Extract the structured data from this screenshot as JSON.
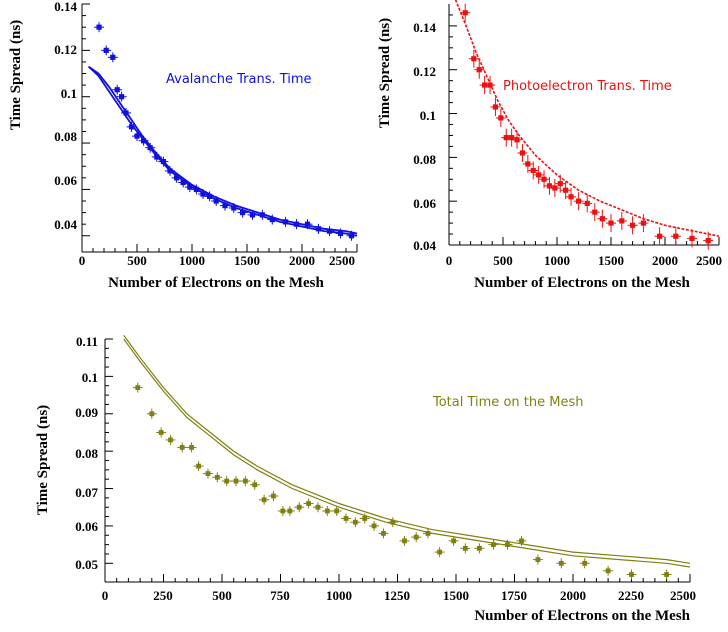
{
  "chart_data": [
    {
      "type": "scatter",
      "title": "",
      "annotation": "Avalanche Trans. Time",
      "xlabel": "Number of Electrons on the Mesh",
      "ylabel": "Time Spread (ns)",
      "xlim": [
        0,
        2500
      ],
      "ylim": [
        0.033,
        0.14
      ],
      "xticks": [
        0,
        500,
        1000,
        1500,
        2000,
        2500
      ],
      "xticklabels": [
        "0",
        "500",
        "1000",
        "1500",
        "2000",
        "2500"
      ],
      "yticks": [
        0.04,
        0.06,
        0.08,
        0.1,
        0.12,
        0.14
      ],
      "yticklabels": [
        "0.04",
        "0.06",
        "0.08",
        "0.1",
        "0.12",
        "0.14"
      ],
      "color": "#1010e0",
      "series": [
        {
          "x": [
            155,
            220,
            280,
            320,
            360,
            400,
            450,
            500,
            560,
            620,
            680,
            740,
            800,
            860,
            920,
            980,
            1040,
            1100,
            1160,
            1220,
            1300,
            1380,
            1460,
            1550,
            1640,
            1730,
            1850,
            1950,
            2050,
            2150,
            2250,
            2350,
            2450
          ],
          "y": [
            0.13,
            0.12,
            0.117,
            0.103,
            0.1,
            0.093,
            0.087,
            0.083,
            0.081,
            0.078,
            0.074,
            0.072,
            0.068,
            0.065,
            0.063,
            0.061,
            0.06,
            0.058,
            0.057,
            0.055,
            0.053,
            0.052,
            0.05,
            0.049,
            0.049,
            0.047,
            0.046,
            0.045,
            0.045,
            0.043,
            0.042,
            0.041,
            0.04
          ]
        }
      ],
      "fits": [
        {
          "x": [
            60,
            150,
            250,
            350,
            450,
            550,
            650,
            800,
            1000,
            1200,
            1400,
            1600,
            1800,
            2000,
            2200,
            2400,
            2500
          ],
          "y": [
            0.113,
            0.11,
            0.104,
            0.097,
            0.09,
            0.083,
            0.077,
            0.069,
            0.062,
            0.057,
            0.053,
            0.05,
            0.047,
            0.045,
            0.043,
            0.042,
            0.041
          ]
        },
        {
          "x": [
            60,
            150,
            250,
            350,
            450,
            550,
            650,
            800,
            1000,
            1200,
            1400,
            1600,
            1800,
            2000,
            2200,
            2400,
            2500
          ],
          "y": [
            0.113,
            0.109,
            0.102,
            0.095,
            0.088,
            0.082,
            0.076,
            0.068,
            0.061,
            0.056,
            0.052,
            0.049,
            0.046,
            0.044,
            0.042,
            0.041,
            0.04
          ]
        }
      ]
    },
    {
      "type": "scatter",
      "title": "",
      "annotation": "Photoelectron Trans. Time",
      "xlabel": "Number of Electrons on the Mesh",
      "ylabel": "Time Spread (ns)",
      "xlim": [
        0,
        2500
      ],
      "ylim": [
        0.04,
        0.15
      ],
      "xticks": [
        0,
        500,
        1000,
        1500,
        2000,
        2500
      ],
      "xticklabels": [
        "0",
        "500",
        "1000",
        "1500",
        "2000",
        "2500"
      ],
      "yticks": [
        0.04,
        0.06,
        0.08,
        0.1,
        0.12,
        0.14
      ],
      "yticklabels": [
        "0.04",
        "0.06",
        "0.08",
        "0.1",
        "0.12",
        "0.14"
      ],
      "color": "#ee1010",
      "series": [
        {
          "x": [
            150,
            230,
            280,
            330,
            380,
            430,
            480,
            530,
            580,
            630,
            680,
            730,
            780,
            830,
            880,
            930,
            980,
            1030,
            1080,
            1130,
            1200,
            1280,
            1350,
            1420,
            1500,
            1600,
            1700,
            1800,
            1950,
            2100,
            2250,
            2400
          ],
          "y": [
            0.146,
            0.125,
            0.12,
            0.113,
            0.113,
            0.103,
            0.098,
            0.089,
            0.089,
            0.088,
            0.082,
            0.077,
            0.074,
            0.072,
            0.07,
            0.067,
            0.066,
            0.068,
            0.065,
            0.062,
            0.06,
            0.059,
            0.055,
            0.052,
            0.05,
            0.051,
            0.049,
            0.05,
            0.044,
            0.044,
            0.043,
            0.042
          ]
        }
      ],
      "fits": [
        {
          "x": [
            60,
            150,
            250,
            350,
            450,
            550,
            650,
            800,
            1000,
            1200,
            1400,
            1600,
            1800,
            2000,
            2200,
            2400,
            2500
          ],
          "y": [
            0.152,
            0.141,
            0.128,
            0.117,
            0.106,
            0.097,
            0.09,
            0.081,
            0.072,
            0.065,
            0.06,
            0.056,
            0.052,
            0.049,
            0.047,
            0.045,
            0.044
          ]
        }
      ]
    },
    {
      "type": "scatter",
      "title": "",
      "annotation": "Total Time on the Mesh",
      "xlabel": "Number of Electrons on the Mesh",
      "ylabel": "Time Spread (ns)",
      "xlim": [
        0,
        2500
      ],
      "ylim": [
        0.045,
        0.11
      ],
      "xticks": [
        0,
        250,
        500,
        750,
        1000,
        1250,
        1500,
        1750,
        2000,
        2250,
        2500
      ],
      "xticklabels": [
        "0",
        "250",
        "500",
        "750",
        "1000",
        "1250",
        "1500",
        "1750",
        "2000",
        "2250",
        "2500"
      ],
      "yticks": [
        0.05,
        0.06,
        0.07,
        0.08,
        0.09,
        0.1,
        0.11
      ],
      "yticklabels": [
        "0.05",
        "0.06",
        "0.07",
        "0.08",
        "0.09",
        "0.1",
        "0.11"
      ],
      "color": "#808010",
      "series": [
        {
          "x": [
            140,
            200,
            240,
            280,
            330,
            370,
            400,
            440,
            480,
            520,
            560,
            600,
            640,
            680,
            720,
            760,
            790,
            830,
            870,
            910,
            950,
            990,
            1030,
            1070,
            1110,
            1150,
            1190,
            1230,
            1280,
            1330,
            1380,
            1430,
            1490,
            1540,
            1600,
            1660,
            1720,
            1780,
            1850,
            1950,
            2050,
            2150,
            2250,
            2400
          ],
          "y": [
            0.097,
            0.09,
            0.085,
            0.083,
            0.081,
            0.081,
            0.076,
            0.074,
            0.073,
            0.072,
            0.072,
            0.072,
            0.071,
            0.067,
            0.068,
            0.064,
            0.064,
            0.065,
            0.066,
            0.065,
            0.064,
            0.064,
            0.062,
            0.061,
            0.062,
            0.06,
            0.058,
            0.061,
            0.056,
            0.057,
            0.058,
            0.053,
            0.056,
            0.054,
            0.054,
            0.055,
            0.055,
            0.056,
            0.051,
            0.05,
            0.05,
            0.048,
            0.047,
            0.047
          ]
        }
      ],
      "fits": [
        {
          "x": [
            80,
            150,
            250,
            350,
            450,
            550,
            650,
            800,
            1000,
            1200,
            1400,
            1600,
            1800,
            2000,
            2200,
            2400,
            2500
          ],
          "y": [
            0.111,
            0.105,
            0.097,
            0.09,
            0.085,
            0.08,
            0.076,
            0.071,
            0.066,
            0.062,
            0.059,
            0.057,
            0.055,
            0.053,
            0.052,
            0.051,
            0.05
          ]
        },
        {
          "x": [
            80,
            150,
            250,
            350,
            450,
            550,
            650,
            800,
            1000,
            1200,
            1400,
            1600,
            1800,
            2000,
            2200,
            2400,
            2500
          ],
          "y": [
            0.11,
            0.104,
            0.096,
            0.089,
            0.084,
            0.079,
            0.075,
            0.07,
            0.065,
            0.061,
            0.058,
            0.056,
            0.054,
            0.052,
            0.051,
            0.05,
            0.049
          ]
        }
      ]
    }
  ]
}
